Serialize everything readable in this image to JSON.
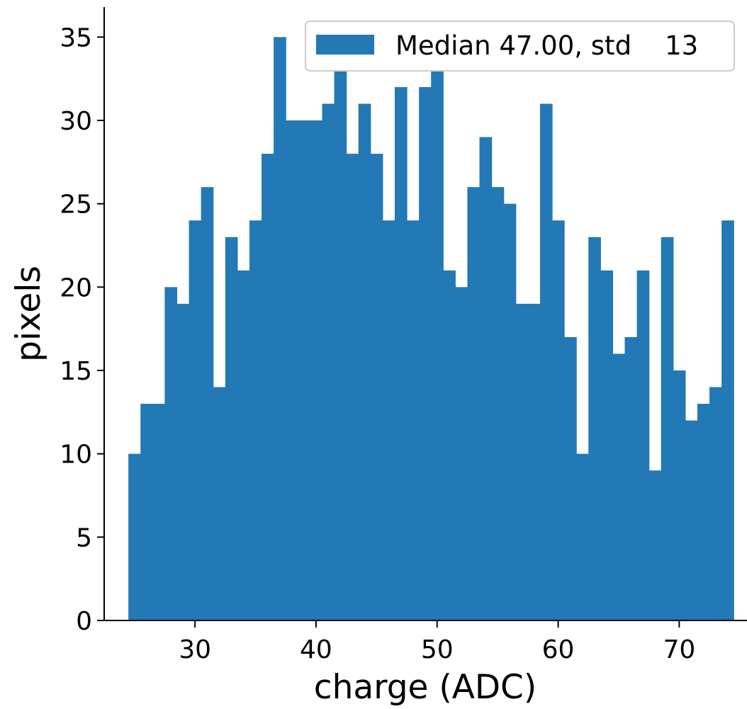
{
  "chart_data": {
    "type": "bar",
    "title": "",
    "xlabel": "charge (ADC)",
    "ylabel": "pixels",
    "bin_width": 1,
    "bin_start": 24.5,
    "values": [
      10,
      13,
      13,
      20,
      19,
      24,
      26,
      14,
      23,
      21,
      24,
      28,
      35,
      30,
      30,
      30,
      31,
      33,
      28,
      31,
      28,
      24,
      32,
      24,
      32,
      33,
      21,
      20,
      26,
      29,
      26,
      25,
      19,
      19,
      31,
      24,
      17,
      10,
      23,
      21,
      16,
      17,
      21,
      9,
      23,
      15,
      12,
      13,
      14,
      24
    ],
    "xlim": [
      22.5,
      75.6
    ],
    "ylim": [
      0,
      36.8
    ],
    "xticks": [
      30,
      40,
      50,
      60,
      70
    ],
    "yticks": [
      0,
      5,
      10,
      15,
      20,
      25,
      30,
      35
    ],
    "grid": false,
    "color": "#2279b5",
    "legend": {
      "placement": "top-right",
      "entries": [
        "Median 47.00, std    13"
      ]
    }
  }
}
